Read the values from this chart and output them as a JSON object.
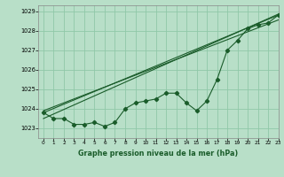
{
  "title": "Graphe pression niveau de la mer (hPa)",
  "background_color": "#b8dfc8",
  "grid_color": "#90c8a8",
  "line_color": "#1a5c2a",
  "xlim": [
    -0.5,
    23
  ],
  "ylim": [
    1022.5,
    1029.3
  ],
  "yticks": [
    1023,
    1024,
    1025,
    1026,
    1027,
    1028,
    1029
  ],
  "xticks": [
    0,
    1,
    2,
    3,
    4,
    5,
    6,
    7,
    8,
    9,
    10,
    11,
    12,
    13,
    14,
    15,
    16,
    17,
    18,
    19,
    20,
    21,
    22,
    23
  ],
  "series1_x": [
    0,
    1,
    2,
    3,
    4,
    5,
    6,
    7,
    8,
    9,
    10,
    11,
    12,
    13,
    14,
    15,
    16,
    17,
    18,
    19,
    20,
    21,
    22,
    23
  ],
  "series1_y": [
    1023.8,
    1023.5,
    1023.5,
    1023.2,
    1023.2,
    1023.3,
    1023.1,
    1023.3,
    1024.0,
    1024.3,
    1024.4,
    1024.5,
    1024.8,
    1024.8,
    1024.3,
    1023.9,
    1024.4,
    1025.5,
    1027.0,
    1027.5,
    1028.1,
    1028.3,
    1028.4,
    1028.8
  ],
  "trend1_x": [
    0,
    23
  ],
  "trend1_y": [
    1023.8,
    1028.8
  ],
  "trend2_x": [
    0,
    23
  ],
  "trend2_y": [
    1023.9,
    1028.55
  ],
  "trend3_x": [
    0,
    23
  ],
  "trend3_y": [
    1023.5,
    1028.85
  ]
}
